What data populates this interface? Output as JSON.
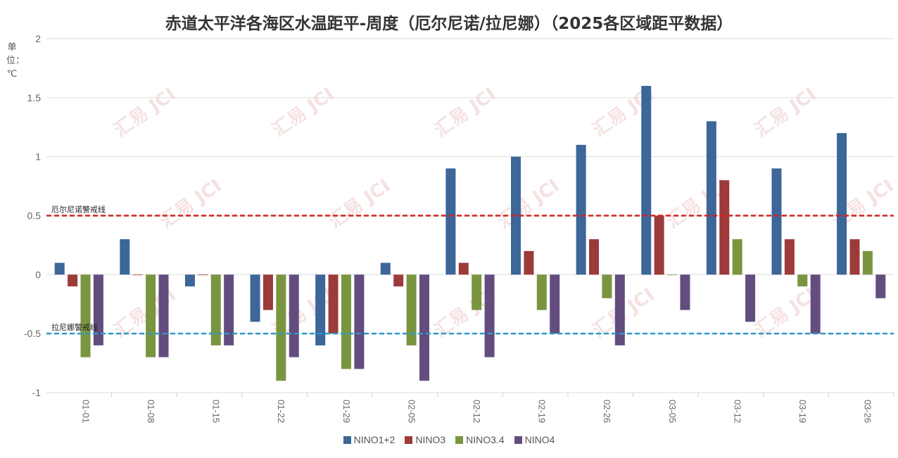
{
  "chart_data": {
    "type": "bar",
    "title": "赤道太平洋各海区水温距平-周度（厄尔尼诺/拉尼娜）（2025各区域距平数据）",
    "ylabel": "单位：℃",
    "xlabel": "",
    "ylim": [
      -1,
      2
    ],
    "yticks": [
      "2",
      "1.5",
      "1",
      "0.5",
      "0",
      "-0.5",
      "-1"
    ],
    "ytick_values": [
      2,
      1.5,
      1,
      0.5,
      0,
      -0.5,
      -1
    ],
    "grid": true,
    "legend_position": "bottom",
    "categories": [
      "01-01",
      "01-08",
      "01-15",
      "01-22",
      "01-29",
      "02-05",
      "02-12",
      "02-19",
      "02-26",
      "03-05",
      "03-12",
      "03-19",
      "03-26"
    ],
    "series": [
      {
        "name": "NINO1+2",
        "color": "#3d6699",
        "values": [
          0.1,
          0.3,
          -0.1,
          -0.4,
          -0.6,
          0.1,
          0.9,
          1.0,
          1.1,
          1.6,
          1.3,
          0.9,
          1.2
        ]
      },
      {
        "name": "NINO3",
        "color": "#9c3b3a",
        "values": [
          -0.1,
          0,
          0,
          -0.3,
          -0.5,
          -0.1,
          0.1,
          0.2,
          0.3,
          0.5,
          0.8,
          0.3,
          0.3
        ]
      },
      {
        "name": "NINO3.4",
        "color": "#7a9540",
        "values": [
          -0.7,
          -0.7,
          -0.6,
          -0.9,
          -0.8,
          -0.6,
          -0.3,
          -0.3,
          -0.2,
          0,
          0.3,
          -0.1,
          0.2
        ]
      },
      {
        "name": "NINO4",
        "color": "#634d7e",
        "values": [
          -0.6,
          -0.7,
          -0.6,
          -0.7,
          -0.8,
          -0.9,
          -0.7,
          -0.5,
          -0.6,
          -0.3,
          -0.4,
          -0.5,
          -0.2
        ]
      }
    ],
    "reference_lines": [
      {
        "label": "厄尔尼诺警戒线",
        "value": 0.5,
        "color": "#d62020"
      },
      {
        "label": "拉尼娜警戒线",
        "value": -0.5,
        "color": "#2a9ac8"
      }
    ],
    "watermark": "汇易 JCI"
  }
}
